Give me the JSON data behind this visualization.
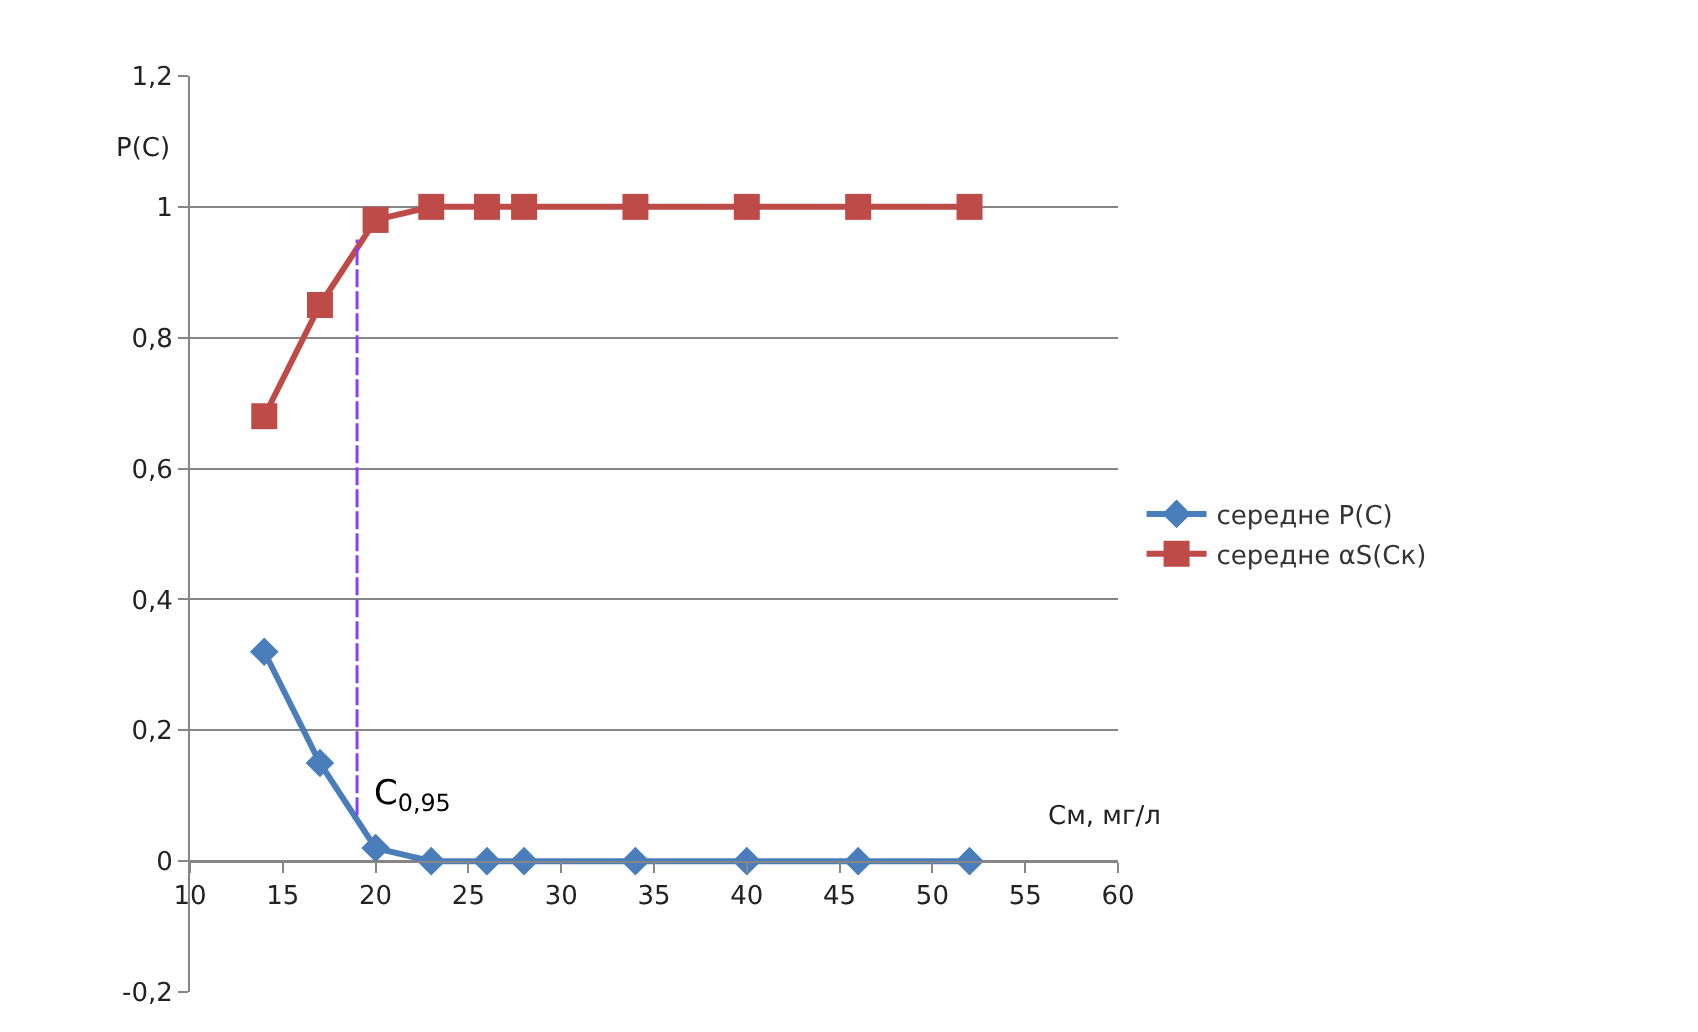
{
  "chart_data": {
    "type": "line",
    "xlabel": "См, мг/л",
    "ylabel": "P(C)",
    "x": [
      14,
      17,
      20,
      23,
      26,
      28,
      34,
      40,
      46,
      52
    ],
    "series": [
      {
        "name": "середне P(C)",
        "color": "#4a7ebb",
        "marker": "diamond",
        "values": [
          0.32,
          0.15,
          0.02,
          0,
          0,
          0,
          0,
          0,
          0,
          0
        ]
      },
      {
        "name": "середне αS(Cк)",
        "color": "#be4b48",
        "marker": "square",
        "values": [
          0.68,
          0.85,
          0.98,
          1,
          1,
          1,
          1,
          1,
          1,
          1
        ]
      },
      {
        "x": [
          19,
          19
        ],
        "values": [
          0.07,
          0.95
        ],
        "color": "#8a3ffc",
        "line_style": "dashed",
        "marker": "none"
      }
    ],
    "annotations": [
      {
        "text": "C$_{0,95}$",
        "x": 19,
        "y": 0.1
      }
    ],
    "xlim": [
      10,
      60
    ],
    "xticks": [
      10,
      15,
      20,
      25,
      30,
      35,
      40,
      45,
      50,
      55,
      60
    ],
    "ylim": [
      -0.2,
      1.2
    ],
    "yticks": [
      {
        "value": -0.2,
        "label": "-0,2"
      },
      0,
      {
        "value": 0.2,
        "label": "0,2"
      },
      {
        "value": 0.4,
        "label": "0,4"
      },
      {
        "value": 0.6,
        "label": "0,6"
      },
      {
        "value": 0.8,
        "label": "0,8"
      },
      1,
      {
        "value": 1.2,
        "label": "1,2"
      }
    ],
    "grid": "y",
    "legend": "right",
    "line_style": "solid"
  }
}
